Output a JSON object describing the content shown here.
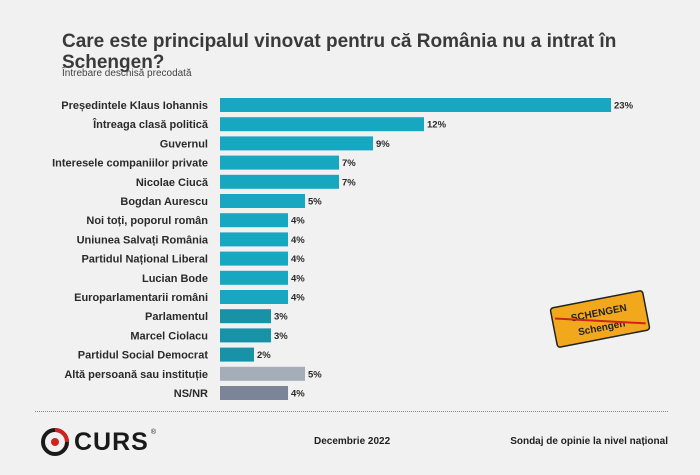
{
  "header": {
    "title": "Care este principalul vinovat pentru că România nu a intrat în Schengen?",
    "subtitle": "Întrebare deschisă precodată"
  },
  "chart_data": {
    "type": "bar",
    "orientation": "horizontal",
    "categories": [
      "Președintele Klaus Iohannis",
      "Întreaga clasă politică",
      "Guvernul",
      "Interesele companiilor private",
      "Nicolae Ciucă",
      "Bogdan Aurescu",
      "Noi toți, poporul român",
      "Uniunea Salvați România",
      "Partidul Național Liberal",
      "Lucian Bode",
      "Europarlamentarii români",
      "Parlamentul",
      "Marcel Ciolacu",
      "Partidul Social Democrat",
      "Altă persoană sau instituție",
      "NS/NR"
    ],
    "values": [
      23,
      12,
      9,
      7,
      7,
      5,
      4,
      4,
      4,
      4,
      4,
      3,
      3,
      2,
      5,
      4
    ],
    "value_labels": [
      "23%",
      "12%",
      "9%",
      "7%",
      "7%",
      "5%",
      "4%",
      "4%",
      "4%",
      "4%",
      "4%",
      "3%",
      "3%",
      "2%",
      "5%",
      "4%"
    ],
    "colors": [
      "#17a7c1",
      "#17a7c1",
      "#17a7c1",
      "#17a7c1",
      "#17a7c1",
      "#17a7c1",
      "#17a7c1",
      "#17a7c1",
      "#17a7c1",
      "#17a7c1",
      "#17a7c1",
      "#1792a6",
      "#1792a6",
      "#1792a6",
      "#a5adb8",
      "#7b8597"
    ],
    "xlim": [
      0,
      23
    ],
    "grid": false
  },
  "stamp": {
    "top_text": "SCHENGEN",
    "bottom_text": "Schengen"
  },
  "footer": {
    "logo_text": "CURS",
    "logo_mark": "®",
    "date": "Decembrie 2022",
    "survey": "Sondaj de opinie la nivel național"
  }
}
